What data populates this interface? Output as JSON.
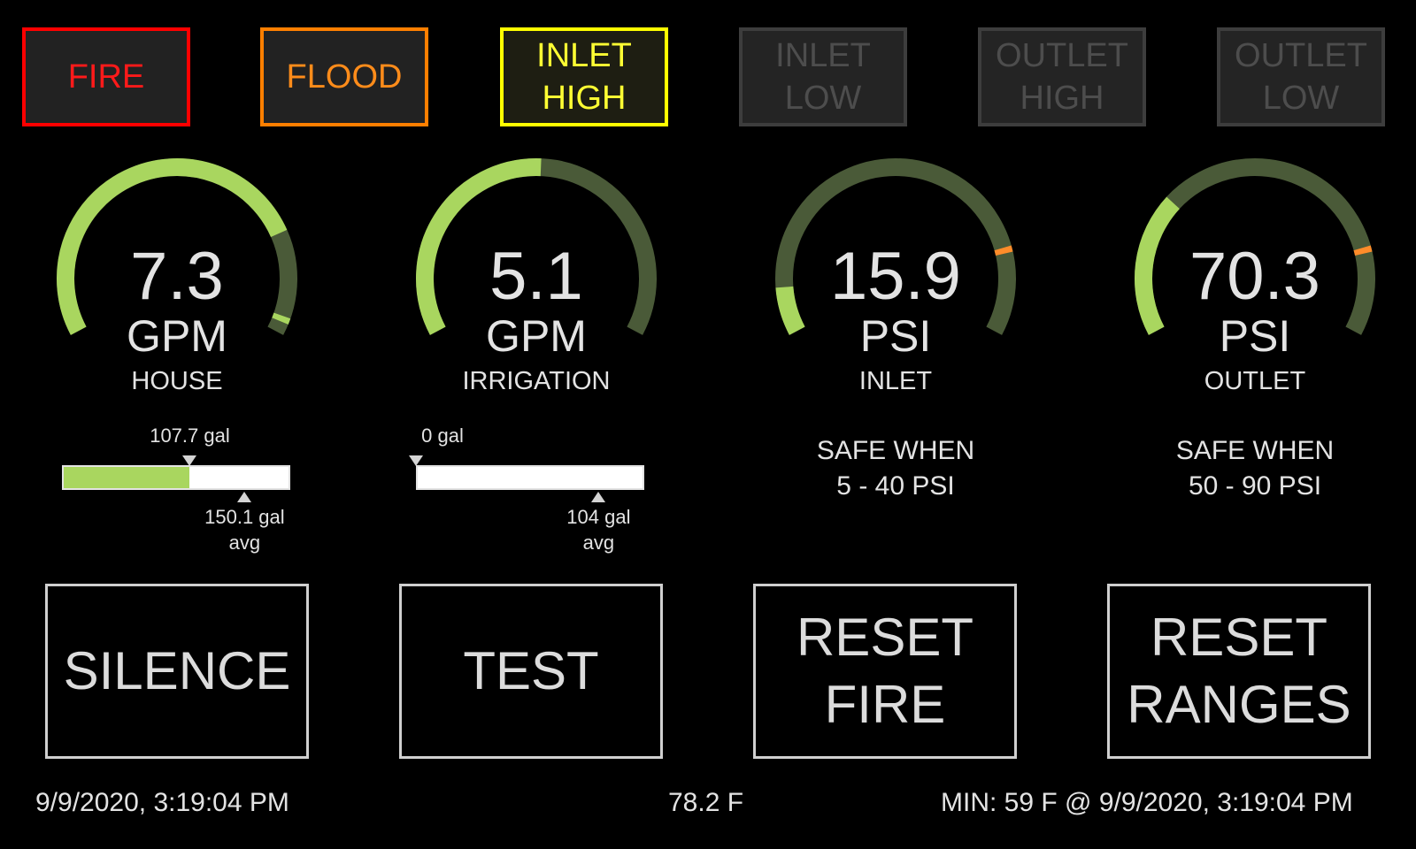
{
  "alarms": [
    {
      "key": "fire",
      "label": "FIRE",
      "state": "active",
      "color": "#ff0000"
    },
    {
      "key": "flood",
      "label": "FLOOD",
      "state": "active",
      "color": "#ff7f00"
    },
    {
      "key": "inlet-high",
      "label": "INLET\nHIGH",
      "state": "active",
      "color": "#ffff00"
    },
    {
      "key": "inlet-low",
      "label": "INLET\nLOW",
      "state": "inactive",
      "color": "#444444"
    },
    {
      "key": "outlet-high",
      "label": "OUTLET\nHIGH",
      "state": "inactive",
      "color": "#444444"
    },
    {
      "key": "outlet-low",
      "label": "OUTLET\nLOW",
      "state": "inactive",
      "color": "#444444"
    }
  ],
  "gauges": [
    {
      "value": "7.3",
      "unit": "GPM",
      "label": "HOUSE",
      "fraction": 0.78,
      "marker_fraction": 0.97,
      "marker_color": "#a9d65f"
    },
    {
      "value": "5.1",
      "unit": "GPM",
      "label": "IRRIGATION",
      "fraction": 0.51,
      "marker_fraction": null,
      "marker_color": null
    },
    {
      "value": "15.9",
      "unit": "PSI",
      "label": "INLET",
      "fraction": 0.1,
      "marker_fraction": 0.82,
      "marker_color": "#ff8c2a"
    },
    {
      "value": "70.3",
      "unit": "PSI",
      "label": "OUTLET",
      "fraction": 0.3,
      "marker_fraction": 0.82,
      "marker_color": "#ff8c2a"
    }
  ],
  "colors": {
    "gauge_fill": "#a9d65f",
    "gauge_track": "#4a5a38"
  },
  "usage": [
    {
      "current": "107.7 gal",
      "average": "150.1 gal\navg",
      "fill_fraction": 0.56,
      "current_fraction": 0.56,
      "average_fraction": 0.8
    },
    {
      "current": "0 gal",
      "average": "104 gal\navg",
      "fill_fraction": 0,
      "current_fraction": 0,
      "average_fraction": 0.8
    }
  ],
  "safe_ranges": [
    {
      "text": "SAFE WHEN\n5 - 40 PSI"
    },
    {
      "text": "SAFE WHEN\n50 - 90 PSI"
    }
  ],
  "controls": {
    "silence": "SILENCE",
    "test": "TEST",
    "reset_fire": "RESET\nFIRE",
    "reset_ranges": "RESET\nRANGES"
  },
  "footer": {
    "datetime": "9/9/2020, 3:19:04 PM",
    "temperature": "78.2 F",
    "min_temp": "MIN: 59 F @ 9/9/2020, 3:19:04 PM"
  }
}
